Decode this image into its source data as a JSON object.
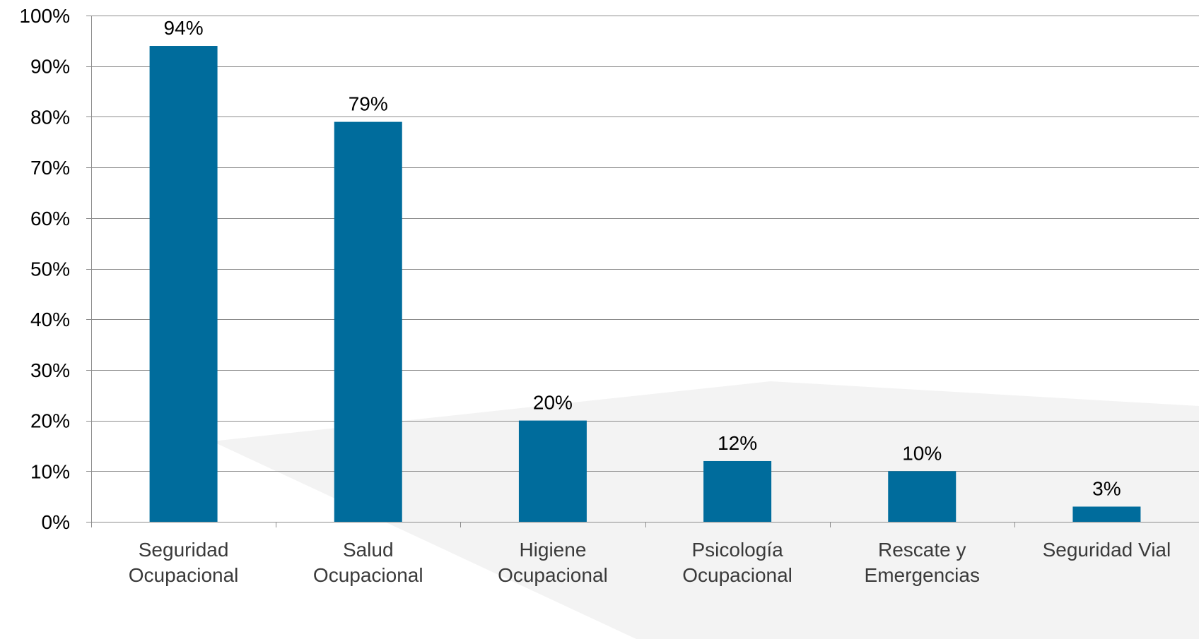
{
  "chart_data": {
    "type": "bar",
    "categories": [
      [
        "Seguridad",
        "Ocupacional"
      ],
      [
        "Salud",
        "Ocupacional"
      ],
      [
        "Higiene",
        "Ocupacional"
      ],
      [
        "Psicología",
        "Ocupacional"
      ],
      [
        "Rescate y",
        "Emergencias"
      ],
      [
        "Seguridad Vial"
      ]
    ],
    "values": [
      94,
      79,
      20,
      12,
      10,
      3
    ],
    "data_labels": [
      "94%",
      "79%",
      "20%",
      "12%",
      "10%",
      "3%"
    ],
    "y_ticks": [
      "0%",
      "10%",
      "20%",
      "30%",
      "40%",
      "50%",
      "60%",
      "70%",
      "80%",
      "90%",
      "100%"
    ],
    "ylim": [
      0,
      100
    ],
    "grid": true,
    "legend": "none",
    "colors": {
      "bar": "#006C9C",
      "grid": "#8c8c8c",
      "axis": "#8c8c8c",
      "watermark": "#f3f3f3"
    }
  }
}
